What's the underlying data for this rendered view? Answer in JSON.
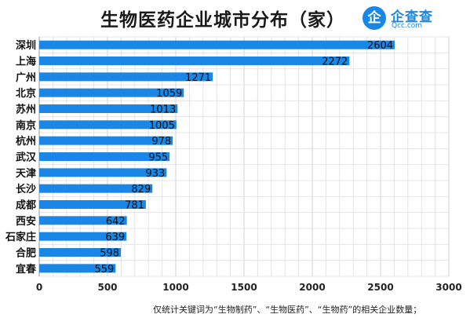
{
  "brand": {
    "logo_glyph": "企",
    "name": "企查查",
    "domain": "Qcc.com",
    "color": "#1a86e6"
  },
  "footnote": "仅统计关键词为“生物制药”、“生物医药”、“生物药”的相关企业数量；",
  "chart_data": {
    "type": "bar",
    "orientation": "horizontal",
    "title": "生物医药企业城市分布（家）",
    "categories": [
      "深圳",
      "上海",
      "广州",
      "北京",
      "苏州",
      "南京",
      "杭州",
      "武汉",
      "天津",
      "长沙",
      "成都",
      "西安",
      "石家庄",
      "合肥",
      "宜春"
    ],
    "values": [
      2604,
      2272,
      1271,
      1059,
      1013,
      1005,
      978,
      955,
      933,
      829,
      781,
      642,
      639,
      598,
      559
    ],
    "xlim": [
      0,
      3000
    ],
    "xticks": [
      0,
      500,
      1000,
      1500,
      2000,
      2500,
      3000
    ],
    "grid": true,
    "bar_color": "#1a86e6"
  }
}
